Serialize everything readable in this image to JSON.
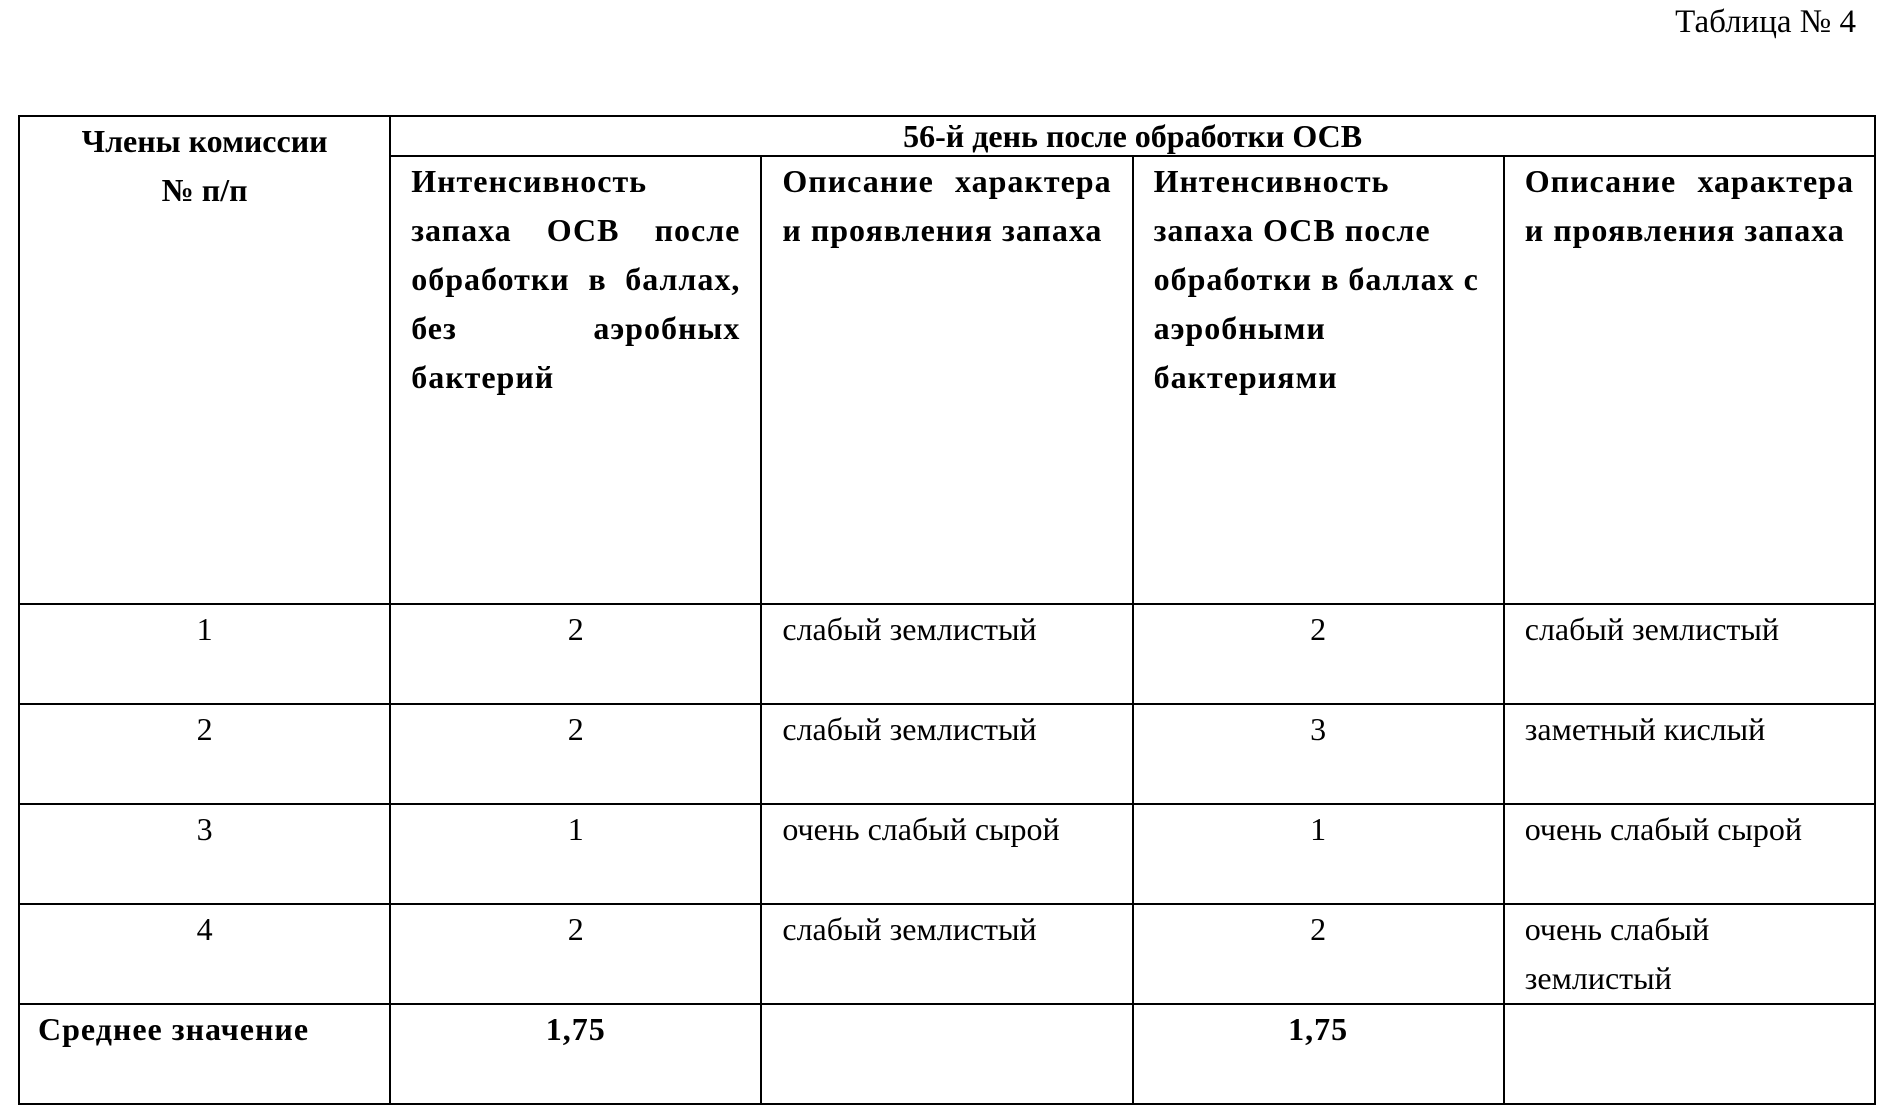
{
  "caption": "Таблица № 4",
  "header": {
    "members": "Члены комиссии № п/п",
    "group": "56-й день после обработки ОСВ",
    "columns": [
      "Интенсивность запаха ОСВ после обработки в баллах, без аэробных бактерий",
      "Описание характера и проявления запаха",
      "Интенсивность запаха ОСВ после обработки в баллах с аэробными бактериями",
      "Описание характера и проявления запаха"
    ]
  },
  "rows": [
    {
      "n": "1",
      "a": "2",
      "a_desc": "слабый землистый",
      "b": "2",
      "b_desc": "слабый землистый"
    },
    {
      "n": "2",
      "a": "2",
      "a_desc": "слабый землистый",
      "b": "3",
      "b_desc": "заметный кислый"
    },
    {
      "n": "3",
      "a": "1",
      "a_desc": "очень слабый сырой",
      "b": "1",
      "b_desc": "очень слабый сырой"
    },
    {
      "n": "4",
      "a": "2",
      "a_desc": "слабый землистый",
      "b": "2",
      "b_desc": "очень слабый землистый"
    }
  ],
  "footer": {
    "label": "Среднее значение",
    "a": "1,75",
    "a_desc": "",
    "b": "1,75",
    "b_desc": ""
  }
}
